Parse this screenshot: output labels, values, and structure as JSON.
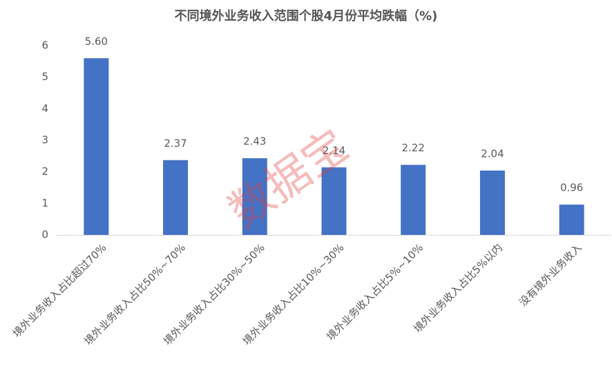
{
  "chart_data": {
    "type": "bar",
    "title": "不同境外业务收入范围个股4月份平均跌幅（%)",
    "watermark": "数据宝",
    "categories": [
      "境外业务收入占比超过70%",
      "境外业务收入占比50%~70%",
      "境外业务收入占比30%~50%",
      "境外业务收入占比10%~30%",
      "境外业务收入占比5%~10%",
      "境外业务收入占比5%以内",
      "没有境外业务收入"
    ],
    "values": [
      5.6,
      2.37,
      2.43,
      2.14,
      2.22,
      2.04,
      0.96
    ],
    "value_labels": [
      "5.60",
      "2.37",
      "2.43",
      "2.14",
      "2.22",
      "2.04",
      "0.96"
    ],
    "color": "#4472c4",
    "ylim": [
      0,
      6
    ],
    "yticks": [
      0,
      1,
      2,
      3,
      4,
      5,
      6
    ],
    "grid": false
  }
}
